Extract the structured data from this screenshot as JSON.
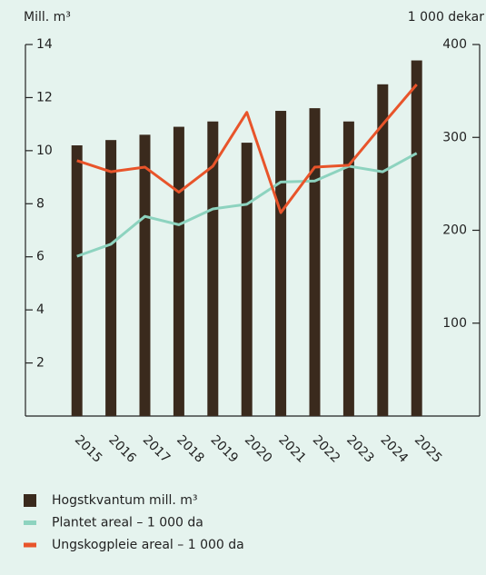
{
  "chart_data": {
    "type": "bar",
    "y_axis_label": "Mill. m³",
    "y2_axis_label": "1 000 dekar",
    "categories": [
      "2015",
      "2016",
      "2017",
      "2018",
      "2019",
      "2020",
      "2021",
      "2022",
      "2023",
      "2024",
      "2025"
    ],
    "series": [
      {
        "name": "Hogstkvantum mill. m³",
        "type": "bar",
        "color": "#3a2a1d",
        "values": [
          10.2,
          10.4,
          10.6,
          10.9,
          11.1,
          10.3,
          11.5,
          11.6,
          11.1,
          12.5,
          13.4
        ]
      },
      {
        "name": "Plantet areal – 1 000 da",
        "type": "line",
        "axis": "y2",
        "color": "#8dd3bf",
        "values": [
          172,
          185,
          215,
          206,
          223,
          228,
          252,
          253,
          269,
          263,
          283
        ]
      },
      {
        "name": "Ungskogpleie areal – 1 000 da",
        "type": "line",
        "axis": "y2",
        "color": "#e8542a",
        "values": [
          275,
          263,
          268,
          241,
          269,
          327,
          219,
          268,
          270,
          314,
          357
        ]
      }
    ],
    "ylim": [
      0,
      14
    ],
    "yticks": [
      2,
      4,
      6,
      8,
      10,
      12,
      14
    ],
    "y2lim": [
      0,
      400
    ],
    "y2ticks": [
      100,
      200,
      300,
      400
    ]
  }
}
